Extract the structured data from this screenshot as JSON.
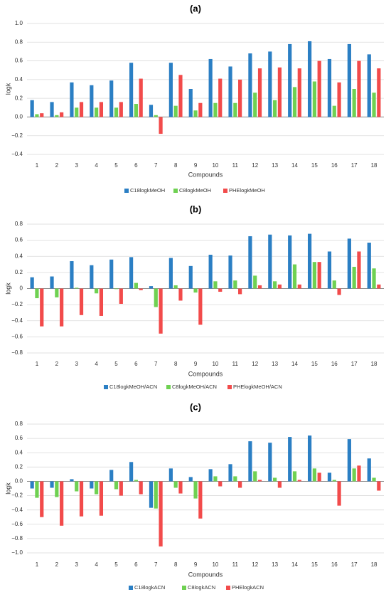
{
  "colors": {
    "C18": "#2b7fc4",
    "C8": "#6fd152",
    "PHE": "#f24b4b",
    "grid": "#d9d9d9",
    "axis": "#8c8c8c",
    "text": "#333333"
  },
  "chart_data": [
    {
      "type": "bar",
      "panel_label": "(a)",
      "categories": [
        "1",
        "2",
        "3",
        "4",
        "5",
        "6",
        "7",
        "8",
        "9",
        "10",
        "11",
        "12",
        "13",
        "14",
        "15",
        "16",
        "17",
        "18"
      ],
      "xlabel": "Compounds",
      "ylabel": "logk",
      "ylim": [
        -0.4,
        1.0
      ],
      "yticks": [
        -0.4,
        -0.2,
        0.0,
        0.2,
        0.4,
        0.6,
        0.8,
        1.0
      ],
      "ytick_labels": [
        "−0.4",
        "−0.2",
        "0.0",
        "0.2",
        "0.4",
        "0.6",
        "0.8",
        "1.0"
      ],
      "grid": true,
      "legend_position": "bottom",
      "series": [
        {
          "name": "C18logkMeOH",
          "color_key": "C18",
          "values": [
            0.18,
            0.16,
            0.37,
            0.34,
            0.39,
            0.58,
            0.13,
            0.58,
            0.3,
            0.62,
            0.54,
            0.68,
            0.7,
            0.78,
            0.81,
            0.62,
            0.78,
            0.67
          ]
        },
        {
          "name": "C8logkMeOH",
          "color_key": "C8",
          "values": [
            0.03,
            0.02,
            0.1,
            0.1,
            0.1,
            0.14,
            0.02,
            0.12,
            0.07,
            0.15,
            0.15,
            0.26,
            0.18,
            0.32,
            0.38,
            0.12,
            0.3,
            0.26
          ]
        },
        {
          "name": "PHElogkMeOH",
          "color_key": "PHE",
          "values": [
            0.04,
            0.05,
            0.16,
            0.16,
            0.16,
            0.41,
            -0.18,
            0.45,
            0.15,
            0.41,
            0.4,
            0.52,
            0.53,
            0.52,
            0.6,
            0.37,
            0.6,
            0.52
          ]
        }
      ]
    },
    {
      "type": "bar",
      "panel_label": "(b)",
      "categories": [
        "1",
        "2",
        "3",
        "4",
        "5",
        "6",
        "7",
        "8",
        "9",
        "10",
        "11",
        "12",
        "13",
        "14",
        "15",
        "16",
        "17",
        "18"
      ],
      "xlabel": "Compounds",
      "ylabel": "logk",
      "ylim": [
        -0.8,
        0.8
      ],
      "yticks": [
        -0.8,
        -0.6,
        -0.4,
        -0.2,
        0.0,
        0.2,
        0.4,
        0.6,
        0.8
      ],
      "ytick_labels": [
        "−0.8",
        "−0.6",
        "−0.4",
        "−0.2",
        "0",
        "0.2",
        "0.4",
        "0.6",
        "0.8"
      ],
      "grid": true,
      "legend_position": "bottom",
      "series": [
        {
          "name": "C18logkMeOH/ACN",
          "color_key": "C18",
          "values": [
            0.14,
            0.15,
            0.34,
            0.29,
            0.36,
            0.39,
            0.03,
            0.38,
            0.28,
            0.42,
            0.41,
            0.65,
            0.67,
            0.66,
            0.68,
            0.46,
            0.62,
            0.57
          ]
        },
        {
          "name": "C8logkMeOH/ACN",
          "color_key": "C8",
          "values": [
            -0.12,
            -0.11,
            0.01,
            -0.06,
            0.0,
            0.07,
            -0.23,
            0.04,
            -0.05,
            0.09,
            0.1,
            0.16,
            0.09,
            0.3,
            0.33,
            0.1,
            0.27,
            0.25
          ]
        },
        {
          "name": "PHElogkMeOH/ACN",
          "color_key": "PHE",
          "values": [
            -0.47,
            -0.47,
            -0.33,
            -0.34,
            -0.19,
            -0.02,
            -0.56,
            -0.15,
            -0.45,
            -0.04,
            -0.07,
            0.04,
            0.05,
            0.05,
            0.33,
            -0.08,
            0.46,
            0.05
          ]
        }
      ]
    },
    {
      "type": "bar",
      "panel_label": "(c)",
      "categories": [
        "1",
        "2",
        "3",
        "4",
        "5",
        "6",
        "7",
        "8",
        "9",
        "10",
        "11",
        "12",
        "13",
        "14",
        "15",
        "16",
        "17",
        "18"
      ],
      "xlabel": "Compounds",
      "ylabel": "logk",
      "ylim": [
        -1.0,
        0.8
      ],
      "yticks": [
        -1.0,
        -0.8,
        -0.6,
        -0.4,
        -0.2,
        0.0,
        0.2,
        0.4,
        0.6,
        0.8
      ],
      "ytick_labels": [
        "−1.0",
        "−0.8",
        "−0.6",
        "−0.4",
        "−0.2",
        "0.0",
        "0.2",
        "0.4",
        "0.6",
        "0.8"
      ],
      "grid": true,
      "legend_position": "bottom",
      "series": [
        {
          "name": "C18logkACN",
          "color_key": "C18",
          "values": [
            -0.1,
            -0.09,
            0.03,
            -0.1,
            0.16,
            0.27,
            -0.37,
            0.18,
            0.06,
            0.17,
            0.24,
            0.56,
            0.54,
            0.62,
            0.64,
            0.12,
            0.59,
            0.32
          ]
        },
        {
          "name": "C8logkACN",
          "color_key": "C8",
          "values": [
            -0.23,
            -0.22,
            -0.14,
            -0.18,
            -0.11,
            0.02,
            -0.38,
            -0.09,
            -0.24,
            0.07,
            0.07,
            0.14,
            0.05,
            0.14,
            0.18,
            0.02,
            0.18,
            0.05
          ]
        },
        {
          "name": "PHElogkACN",
          "color_key": "PHE",
          "values": [
            -0.5,
            -0.62,
            -0.49,
            -0.48,
            -0.2,
            -0.18,
            -0.91,
            -0.17,
            -0.52,
            -0.07,
            -0.09,
            0.02,
            -0.09,
            0.02,
            0.12,
            -0.34,
            0.22,
            -0.13
          ]
        }
      ]
    }
  ]
}
